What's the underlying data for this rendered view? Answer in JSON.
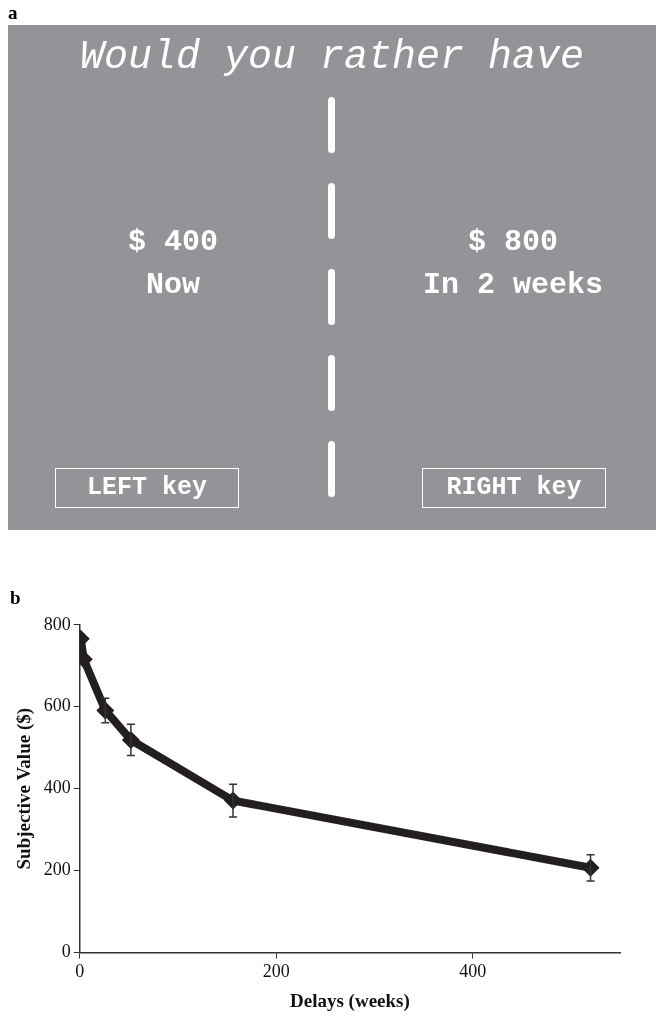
{
  "chart_data": [
    {
      "type": "other",
      "title": "a",
      "annotations": [
        "Would you rather have",
        "$ 400",
        "Now",
        "$ 800",
        "In 2 weeks",
        "LEFT key",
        "RIGHT key"
      ]
    },
    {
      "type": "line",
      "title": "b",
      "xlabel": "Delays (weeks)",
      "ylabel": "Subjective Value ($)",
      "x": [
        1,
        4,
        26,
        52,
        156,
        520
      ],
      "series": [
        {
          "color": "#231f20",
          "values": [
            766,
            716,
            591,
            519,
            371,
            207
          ],
          "errors": [
            null,
            null,
            30,
            38,
            40,
            32
          ]
        }
      ],
      "xlim": [
        0,
        550
      ],
      "xticks": [
        0,
        200,
        400
      ],
      "ylim": [
        0,
        800
      ],
      "yticks": [
        0,
        200,
        400,
        600,
        800
      ],
      "grid": false,
      "legend": false,
      "marker": "diamond",
      "line_style": "solid"
    }
  ]
}
